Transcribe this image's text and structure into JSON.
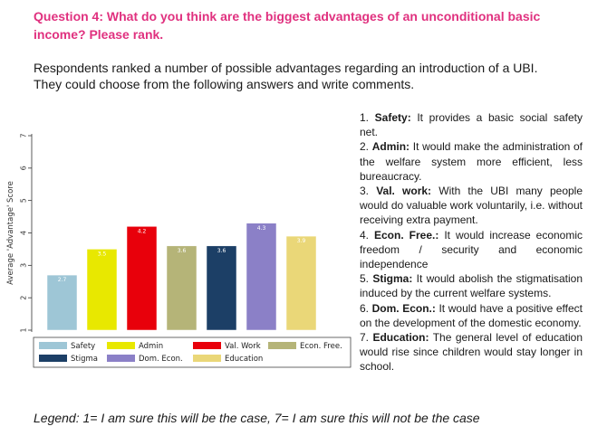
{
  "question": "Question 4: What do you think are the biggest advantages of an unconditional basic income? Please rank.",
  "intro": {
    "line1": "Respondents ranked a number of possible advantages regarding an introduction of a UBI.",
    "line2": "They could choose from the following answers and write comments."
  },
  "answers": [
    {
      "num": "1.",
      "label": "Safety:",
      "text": "It provides a basic social safety net."
    },
    {
      "num": "2.",
      "label": "Admin:",
      "text": "It would make the administration of the welfare system more efficient, less bureaucracy."
    },
    {
      "num": "3.",
      "label": "Val. work:",
      "text": "With the UBI many people would do valuable work voluntarily, i.e. without receiving extra payment."
    },
    {
      "num": "4.",
      "label": "Econ. Free.:",
      "text": "It would increase economic freedom / security and economic independence"
    },
    {
      "num": "5.",
      "label": "Stigma:",
      "text": "It would abolish the stigmatisation induced by the current welfare systems."
    },
    {
      "num": "6.",
      "label": "Dom. Econ.:",
      "text": "It would have a positive effect on the development of the domestic economy."
    },
    {
      "num": "7.",
      "label": "Education:",
      "text": "The general level of education would rise since children would stay longer in school."
    }
  ],
  "legend_note": "Legend: 1= I am sure this will be the case, 7= I am sure this will not be the case",
  "chart_data": {
    "type": "bar",
    "ylabel": "Average 'Advantage' Score",
    "ylim": [
      1,
      7
    ],
    "yticks": [
      "1",
      "2",
      "3",
      "4",
      "5",
      "6",
      "7"
    ],
    "categories": [
      "Safety",
      "Admin",
      "Val. Work",
      "Econ. Free.",
      "Stigma",
      "Dom. Econ.",
      "Education"
    ],
    "values": [
      2.7,
      3.5,
      4.2,
      3.6,
      3.6,
      4.3,
      3.9
    ],
    "value_labels": [
      "2.7",
      "3.5",
      "4.2",
      "3.6",
      "3.6",
      "4.3",
      "3.9"
    ],
    "colors": [
      "#9ec6d6",
      "#e8e800",
      "#e8000b",
      "#b5b478",
      "#1c3f66",
      "#8b80c7",
      "#ead778"
    ],
    "legend_position": "bottom-inside",
    "grid": false
  }
}
